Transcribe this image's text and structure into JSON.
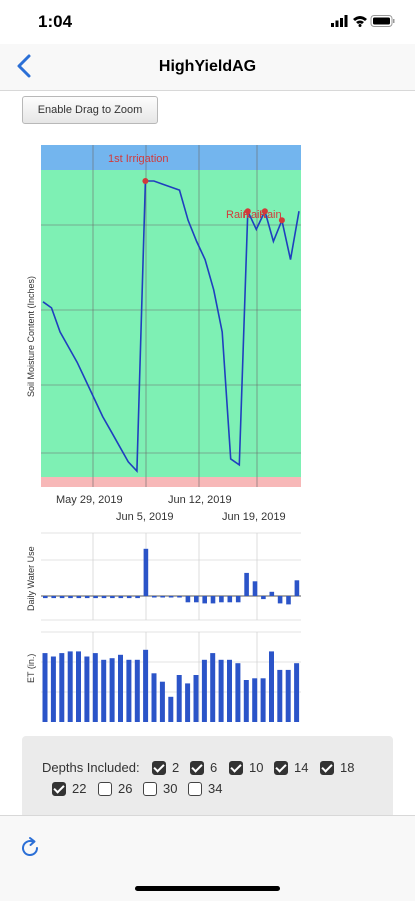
{
  "status": {
    "time": "1:04"
  },
  "nav": {
    "title": "HighYieldAG",
    "back_icon": "chevron-left-icon"
  },
  "zoom_button": {
    "label": "Enable Drag to Zoom"
  },
  "colors": {
    "accent": "#2b6fd6",
    "plot_green": "#7ef0b4",
    "band_blue": "#73b5ee",
    "band_red": "#f7b8b8",
    "line": "#1f3fbf",
    "marker": "#d23a3a"
  },
  "chart_data": [
    {
      "type": "line",
      "ylabel": "Soil Moisture Content (Inches)",
      "x_ticks_top": [
        "May 29, 2019",
        "Jun 12, 2019"
      ],
      "x_ticks_bottom": [
        "Jun 5, 2019",
        "Jun 19, 2019"
      ],
      "x": [
        "2019-05-22",
        "2019-05-23",
        "2019-05-24",
        "2019-05-25",
        "2019-05-26",
        "2019-05-27",
        "2019-05-28",
        "2019-05-29",
        "2019-05-30",
        "2019-05-31",
        "2019-06-01",
        "2019-06-02",
        "2019-06-03",
        "2019-06-04",
        "2019-06-05",
        "2019-06-06",
        "2019-06-07",
        "2019-06-08",
        "2019-06-09",
        "2019-06-10",
        "2019-06-11",
        "2019-06-12",
        "2019-06-13",
        "2019-06-14",
        "2019-06-15",
        "2019-06-16",
        "2019-06-17",
        "2019-06-18",
        "2019-06-19",
        "2019-06-20",
        "2019-06-21"
      ],
      "values": [
        0.58,
        0.56,
        0.48,
        0.43,
        0.38,
        0.32,
        0.26,
        0.2,
        0.15,
        0.1,
        0.05,
        0.02,
        0.98,
        0.98,
        0.97,
        0.96,
        0.95,
        0.85,
        0.78,
        0.72,
        0.62,
        0.48,
        0.06,
        0.04,
        0.88,
        0.82,
        0.88,
        0.78,
        0.85,
        0.72,
        0.88
      ],
      "annotations": [
        "1st Irrigation",
        "Rain",
        "Rain",
        "Rain"
      ]
    },
    {
      "type": "bar",
      "ylabel": "Daily Water Use",
      "values": [
        -0.02,
        -0.02,
        -0.02,
        -0.02,
        -0.02,
        -0.02,
        -0.02,
        -0.02,
        -0.02,
        -0.02,
        -0.02,
        -0.02,
        0.45,
        0,
        0,
        0,
        0,
        -0.06,
        -0.06,
        -0.07,
        -0.07,
        -0.06,
        -0.06,
        -0.06,
        0.22,
        0.14,
        -0.03,
        0.04,
        -0.07,
        -0.08,
        0.15
      ]
    },
    {
      "type": "bar",
      "ylabel": "ET (in.)",
      "values": [
        0.82,
        0.78,
        0.82,
        0.84,
        0.84,
        0.78,
        0.82,
        0.74,
        0.76,
        0.8,
        0.74,
        0.74,
        0.86,
        0.58,
        0.48,
        0.3,
        0.56,
        0.46,
        0.56,
        0.74,
        0.82,
        0.74,
        0.74,
        0.7,
        0.5,
        0.52,
        0.52,
        0.84,
        0.62,
        0.62,
        0.7
      ]
    }
  ],
  "depths": {
    "title": "Depths Included:",
    "items": [
      {
        "label": "2",
        "checked": true
      },
      {
        "label": "6",
        "checked": true
      },
      {
        "label": "10",
        "checked": true
      },
      {
        "label": "14",
        "checked": true
      },
      {
        "label": "18",
        "checked": true
      },
      {
        "label": "22",
        "checked": true
      },
      {
        "label": "26",
        "checked": false
      },
      {
        "label": "30",
        "checked": false
      },
      {
        "label": "34",
        "checked": false
      }
    ]
  },
  "toolbar": {
    "refresh_icon": "refresh-icon"
  }
}
